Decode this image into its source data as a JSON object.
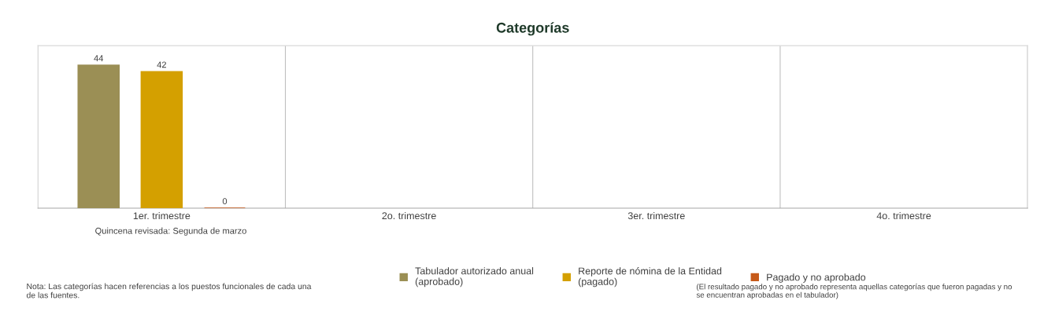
{
  "chart_data": {
    "type": "bar",
    "title": "Categorías",
    "categories": [
      "1er. trimestre",
      "2o. trimestre",
      "3er. trimestre",
      "4o. trimestre"
    ],
    "series": [
      {
        "name": "Tabulador autorizado anual\n(aprobado)",
        "color": "#9b8f55",
        "values": [
          44,
          null,
          null,
          null
        ]
      },
      {
        "name": "Reporte de nómina de la Entidad\n(pagado)",
        "color": "#d4a000",
        "values": [
          42,
          null,
          null,
          null
        ]
      },
      {
        "name": "Pagado y no aprobado",
        "color": "#c65a1a",
        "values": [
          0,
          null,
          null,
          null
        ]
      }
    ],
    "ylim": [
      0,
      50
    ],
    "data_labels": true,
    "legend": "bottom",
    "tick_labels": "x",
    "annotations": [
      "Quincena revisada: Segunda de marzo",
      "Nota: Las categorías hacen referencias a los puestos funcionales de cada una de las fuentes.",
      "(El resultado pagado y no aprobado representa aquellas categorías que fueron pagadas y no se encuentran aprobadas en el tabulador)"
    ]
  }
}
